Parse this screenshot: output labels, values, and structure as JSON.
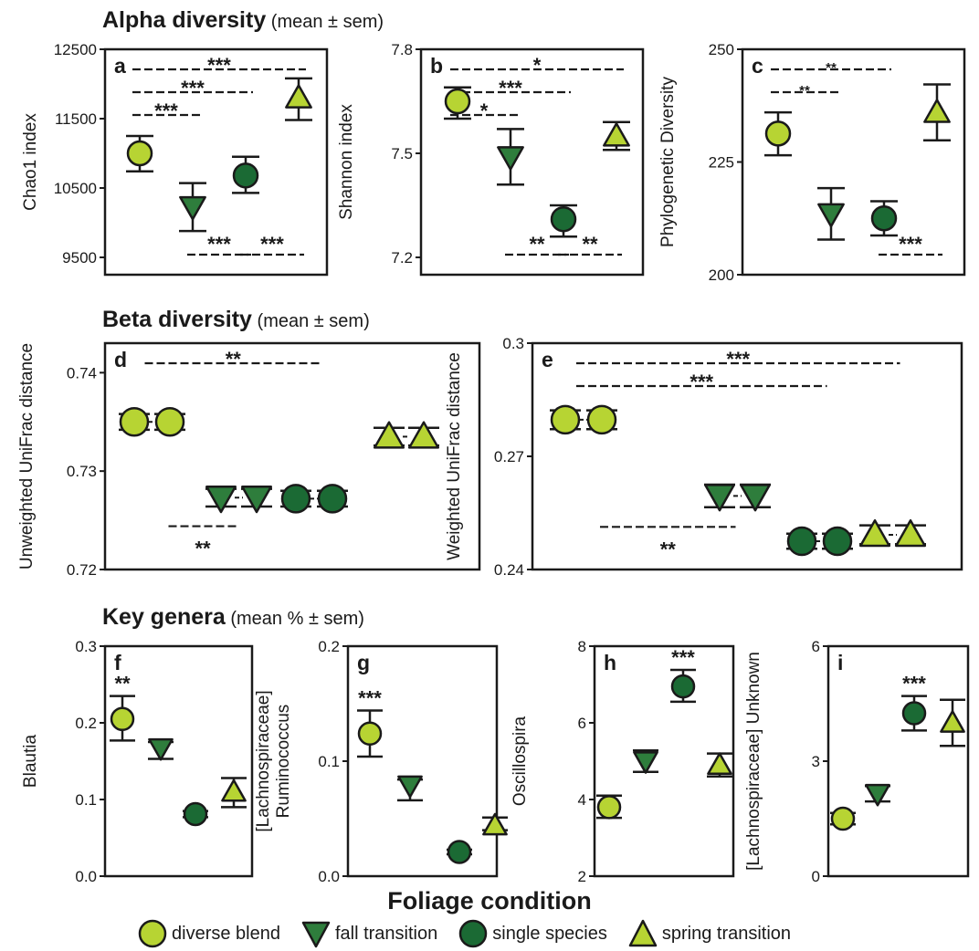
{
  "sections": {
    "alpha": {
      "title": "Alpha diversity",
      "sub": "(mean ± sem)"
    },
    "beta": {
      "title": "Beta diversity",
      "sub": "(mean ± sem)"
    },
    "key": {
      "title": "Key genera",
      "sub": "(mean % ± sem)"
    }
  },
  "x_axis_title": "Foliage condition",
  "legend": [
    {
      "label": "diverse blend",
      "marker": "circle",
      "color": "#b7d433"
    },
    {
      "label": "fall transition",
      "marker": "triangle-down",
      "color": "#2e7d3c"
    },
    {
      "label": "single species",
      "marker": "circle",
      "color": "#1b6a34"
    },
    {
      "label": "spring transition",
      "marker": "triangle-up",
      "color": "#b7d433"
    }
  ],
  "chart_data": [
    {
      "panel": "a",
      "type": "scatter",
      "ylabel": "Chao1  index",
      "ylim": [
        9250,
        12500
      ],
      "yticks": [
        12500,
        11500,
        10500,
        9500
      ],
      "categories": [
        "diverse blend",
        "fall transition",
        "single species",
        "spring transition"
      ],
      "points": [
        {
          "value": 11000,
          "sem_low": 10740,
          "sem_high": 11250
        },
        {
          "value": 10230,
          "sem_low": 9880,
          "sem_high": 10570
        },
        {
          "value": 10680,
          "sem_low": 10430,
          "sem_high": 10950
        },
        {
          "value": 11800,
          "sem_low": 11480,
          "sem_high": 12080
        }
      ],
      "comparisons": [
        {
          "from": 0,
          "to": 3,
          "label": "***",
          "pos": "top"
        },
        {
          "from": 0,
          "to": 2,
          "label": "***",
          "pos": "top"
        },
        {
          "from": 0,
          "to": 1,
          "label": "***",
          "pos": "top"
        },
        {
          "from": 1,
          "to": 2,
          "label": "***",
          "pos": "bottom"
        },
        {
          "from": 2,
          "to": 3,
          "label": "***",
          "pos": "bottom"
        }
      ]
    },
    {
      "panel": "b",
      "type": "scatter",
      "ylabel": "Shannon index",
      "ylim": [
        7.15,
        7.8
      ],
      "yticks": [
        7.8,
        7.5,
        7.2
      ],
      "categories": [
        "diverse blend",
        "fall transition",
        "single species",
        "spring transition"
      ],
      "points": [
        {
          "value": 7.65,
          "sem_low": 7.6,
          "sem_high": 7.69
        },
        {
          "value": 7.49,
          "sem_low": 7.41,
          "sem_high": 7.57
        },
        {
          "value": 7.31,
          "sem_low": 7.26,
          "sem_high": 7.35
        },
        {
          "value": 7.55,
          "sem_low": 7.51,
          "sem_high": 7.59
        }
      ],
      "comparisons": [
        {
          "from": 0,
          "to": 3,
          "label": "*",
          "pos": "top"
        },
        {
          "from": 0,
          "to": 2,
          "label": "***",
          "pos": "top"
        },
        {
          "from": 0,
          "to": 1,
          "label": "*",
          "pos": "top"
        },
        {
          "from": 1,
          "to": 2,
          "label": "**",
          "pos": "bottom"
        },
        {
          "from": 2,
          "to": 3,
          "label": "**",
          "pos": "bottom"
        }
      ]
    },
    {
      "panel": "c",
      "type": "scatter",
      "ylabel": "Phylogenetic Diversity",
      "ylim": [
        200,
        250
      ],
      "yticks": [
        250,
        225,
        200
      ],
      "categories": [
        "diverse blend",
        "fall transition",
        "single species",
        "spring transition"
      ],
      "points": [
        {
          "value": 231.3,
          "sem_low": 226.5,
          "sem_high": 236.0
        },
        {
          "value": 213.5,
          "sem_low": 207.8,
          "sem_high": 219.2
        },
        {
          "value": 212.5,
          "sem_low": 208.7,
          "sem_high": 216.3
        },
        {
          "value": 236.0,
          "sem_low": 229.8,
          "sem_high": 242.2
        }
      ],
      "comparisons": [
        {
          "from": 0,
          "to": 2,
          "label": "**",
          "pos": "top"
        },
        {
          "from": 0,
          "to": 1,
          "label": "**",
          "pos": "top"
        },
        {
          "from": 2,
          "to": 3,
          "label": "***",
          "pos": "bottom"
        }
      ]
    },
    {
      "panel": "d",
      "type": "scatter",
      "ylabel": "Unweighted UniFrac distance",
      "ylim": [
        0.72,
        0.743
      ],
      "yticks": [
        0.74,
        0.73,
        0.72
      ],
      "categories": [
        "diverse blend",
        "fall transition",
        "single species",
        "spring transition"
      ],
      "doubled": true,
      "points": [
        {
          "value": 0.735,
          "sem_low": 0.7342,
          "sem_high": 0.7358
        },
        {
          "value": 0.7273,
          "sem_low": 0.7264,
          "sem_high": 0.7282
        },
        {
          "value": 0.7272,
          "sem_low": 0.7264,
          "sem_high": 0.728
        },
        {
          "value": 0.7335,
          "sem_low": 0.7326,
          "sem_high": 0.7344
        }
      ],
      "comparisons": [
        {
          "from": 0,
          "to": 2,
          "label": "**",
          "pos": "top"
        },
        {
          "from": 0,
          "to": 1,
          "label": "**",
          "pos": "bottom"
        }
      ]
    },
    {
      "panel": "e",
      "type": "scatter",
      "ylabel": "Weighted UniFrac distance",
      "ylim": [
        0.24,
        0.3
      ],
      "yticks": [
        0.3,
        0.27,
        0.24
      ],
      "categories": [
        "diverse blend",
        "fall transition",
        "single species",
        "spring transition"
      ],
      "doubled": true,
      "points": [
        {
          "value": 0.2797,
          "sem_low": 0.2772,
          "sem_high": 0.2822
        },
        {
          "value": 0.2595,
          "sem_low": 0.2565,
          "sem_high": 0.2625
        },
        {
          "value": 0.2475,
          "sem_low": 0.2455,
          "sem_high": 0.2495
        },
        {
          "value": 0.2492,
          "sem_low": 0.2467,
          "sem_high": 0.2517
        }
      ],
      "comparisons": [
        {
          "from": 0,
          "to": 3,
          "label": "***",
          "pos": "top"
        },
        {
          "from": 0,
          "to": 2,
          "label": "***",
          "pos": "top"
        },
        {
          "from": 0,
          "to": 1,
          "label": "**",
          "pos": "bottom"
        }
      ]
    },
    {
      "panel": "f",
      "type": "scatter",
      "ylabel": "Blautia",
      "ylim": [
        0,
        0.3
      ],
      "yticks": [
        0.3,
        0.2,
        0.1,
        0.0
      ],
      "categories": [
        "diverse blend",
        "fall transition",
        "single species",
        "spring transition"
      ],
      "points": [
        {
          "value": 0.205,
          "sem_low": 0.177,
          "sem_high": 0.235
        },
        {
          "value": 0.167,
          "sem_low": 0.153,
          "sem_high": 0.175
        },
        {
          "value": 0.081,
          "sem_low": 0.077,
          "sem_high": 0.085
        },
        {
          "value": 0.11,
          "sem_low": 0.09,
          "sem_high": 0.128
        }
      ],
      "annotations": [
        {
          "index": 0,
          "label": "**"
        }
      ]
    },
    {
      "panel": "g",
      "type": "scatter",
      "ylabel": "[Lachnospiraceae] Ruminococcus",
      "ylim": [
        0,
        0.2
      ],
      "yticks": [
        0.2,
        0.1,
        0.0
      ],
      "categories": [
        "diverse blend",
        "fall transition",
        "single species",
        "spring transition"
      ],
      "points": [
        {
          "value": 0.124,
          "sem_low": 0.104,
          "sem_high": 0.144
        },
        {
          "value": 0.079,
          "sem_low": 0.066,
          "sem_high": 0.084
        },
        {
          "value": 0.021,
          "sem_low": 0.019,
          "sem_high": 0.023
        },
        {
          "value": 0.044,
          "sem_low": 0.04,
          "sem_high": 0.051
        }
      ],
      "annotations": [
        {
          "index": 0,
          "label": "***"
        }
      ]
    },
    {
      "panel": "h",
      "type": "scatter",
      "ylabel": "Oscillospira",
      "ylim": [
        2,
        8
      ],
      "yticks": [
        8,
        6,
        4,
        2
      ],
      "categories": [
        "diverse blend",
        "fall transition",
        "single species",
        "spring transition"
      ],
      "points": [
        {
          "value": 3.8,
          "sem_low": 3.52,
          "sem_high": 4.1
        },
        {
          "value": 5.0,
          "sem_low": 4.72,
          "sem_high": 5.28
        },
        {
          "value": 6.95,
          "sem_low": 6.55,
          "sem_high": 7.38
        },
        {
          "value": 4.9,
          "sem_low": 4.6,
          "sem_high": 5.2
        }
      ],
      "annotations": [
        {
          "index": 2,
          "label": "***"
        }
      ]
    },
    {
      "panel": "i",
      "type": "scatter",
      "ylabel": "[Lachnospiraceae] Unknown",
      "ylim": [
        0,
        6
      ],
      "yticks": [
        6,
        3,
        0
      ],
      "categories": [
        "diverse blend",
        "fall transition",
        "single species",
        "spring transition"
      ],
      "points": [
        {
          "value": 1.5,
          "sem_low": 1.35,
          "sem_high": 1.65
        },
        {
          "value": 2.15,
          "sem_low": 1.95,
          "sem_high": 2.35
        },
        {
          "value": 4.25,
          "sem_low": 3.8,
          "sem_high": 4.7
        },
        {
          "value": 4.0,
          "sem_low": 3.4,
          "sem_high": 4.6
        }
      ],
      "annotations": [
        {
          "index": 2,
          "label": "***"
        }
      ]
    }
  ]
}
